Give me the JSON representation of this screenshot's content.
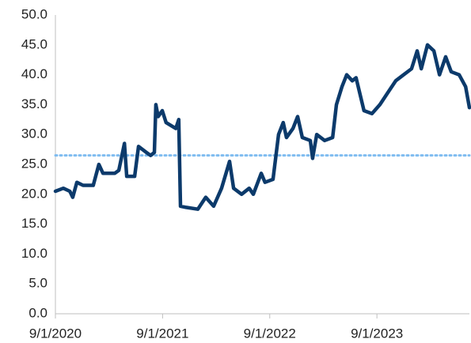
{
  "chart_data": {
    "type": "line",
    "x": [
      "2020-09-01",
      "2020-09-28",
      "2020-10-20",
      "2020-10-30",
      "2020-11-13",
      "2020-12-04",
      "2021-01-08",
      "2021-01-27",
      "2021-02-10",
      "2021-03-22",
      "2021-04-05",
      "2021-04-24",
      "2021-05-02",
      "2021-05-29",
      "2021-06-11",
      "2021-07-08",
      "2021-07-22",
      "2021-08-04",
      "2021-08-09",
      "2021-08-17",
      "2021-08-31",
      "2021-09-13",
      "2021-10-16",
      "2021-10-26",
      "2021-11-01",
      "2021-11-20",
      "2021-12-30",
      "2022-01-26",
      "2022-02-22",
      "2022-03-21",
      "2022-04-17",
      "2022-05-01",
      "2022-05-28",
      "2022-06-23",
      "2022-07-07",
      "2022-08-03",
      "2022-08-16",
      "2022-09-12",
      "2022-10-01",
      "2022-10-17",
      "2022-10-28",
      "2022-11-19",
      "2022-12-05",
      "2022-12-21",
      "2023-01-17",
      "2023-01-25",
      "2023-02-08",
      "2023-03-07",
      "2023-04-03",
      "2023-04-16",
      "2023-05-05",
      "2023-05-21",
      "2023-06-09",
      "2023-06-22",
      "2023-07-19",
      "2023-08-15",
      "2023-09-11",
      "2023-10-08",
      "2023-11-04",
      "2023-12-01",
      "2023-12-28",
      "2024-01-16",
      "2024-01-30",
      "2024-02-20",
      "2024-03-13",
      "2024-04-01",
      "2024-04-22",
      "2024-05-11",
      "2024-06-07",
      "2024-06-29",
      "2024-07-12"
    ],
    "series": [
      {
        "color": "#0c3a6b",
        "values": [
          20.5,
          21,
          20.5,
          19.5,
          22,
          21.5,
          21.5,
          25,
          23.5,
          23.5,
          24,
          28.5,
          23,
          23,
          28,
          27,
          26.5,
          27,
          35,
          33,
          34,
          32,
          31,
          32.5,
          18,
          17.8,
          17.5,
          19.5,
          18,
          21,
          25.5,
          21,
          20,
          21,
          20,
          23.5,
          22,
          22.5,
          30,
          32,
          29.5,
          31,
          33,
          29.5,
          29,
          26,
          30,
          29,
          29.5,
          35,
          38,
          40,
          39,
          39.5,
          34,
          33.5,
          35,
          37,
          39,
          40,
          41,
          44,
          41,
          45,
          44,
          40,
          43,
          40.5,
          40,
          38,
          34.5
        ]
      }
    ],
    "reference_line": {
      "value": 26.5,
      "color": "#7fbcf0"
    },
    "xlim": [
      "2020-09-01",
      "2024-07-12"
    ],
    "xticks": [
      {
        "value": "2020-09-01",
        "label": "9/1/2020"
      },
      {
        "value": "2021-09-01",
        "label": "9/1/2021"
      },
      {
        "value": "2022-09-01",
        "label": "9/1/2022"
      },
      {
        "value": "2023-09-01",
        "label": "9/1/2023"
      }
    ],
    "ylim": [
      0,
      50
    ],
    "yticks": [
      {
        "value": 0,
        "label": "0.0"
      },
      {
        "value": 5,
        "label": "5.0"
      },
      {
        "value": 10,
        "label": "10.0"
      },
      {
        "value": 15,
        "label": "15.0"
      },
      {
        "value": 20,
        "label": "20.0"
      },
      {
        "value": 25,
        "label": "25.0"
      },
      {
        "value": 30,
        "label": "30.0"
      },
      {
        "value": 35,
        "label": "35.0"
      },
      {
        "value": 40,
        "label": "40.0"
      },
      {
        "value": 45,
        "label": "45.0"
      },
      {
        "value": 50,
        "label": "50.0"
      }
    ]
  }
}
